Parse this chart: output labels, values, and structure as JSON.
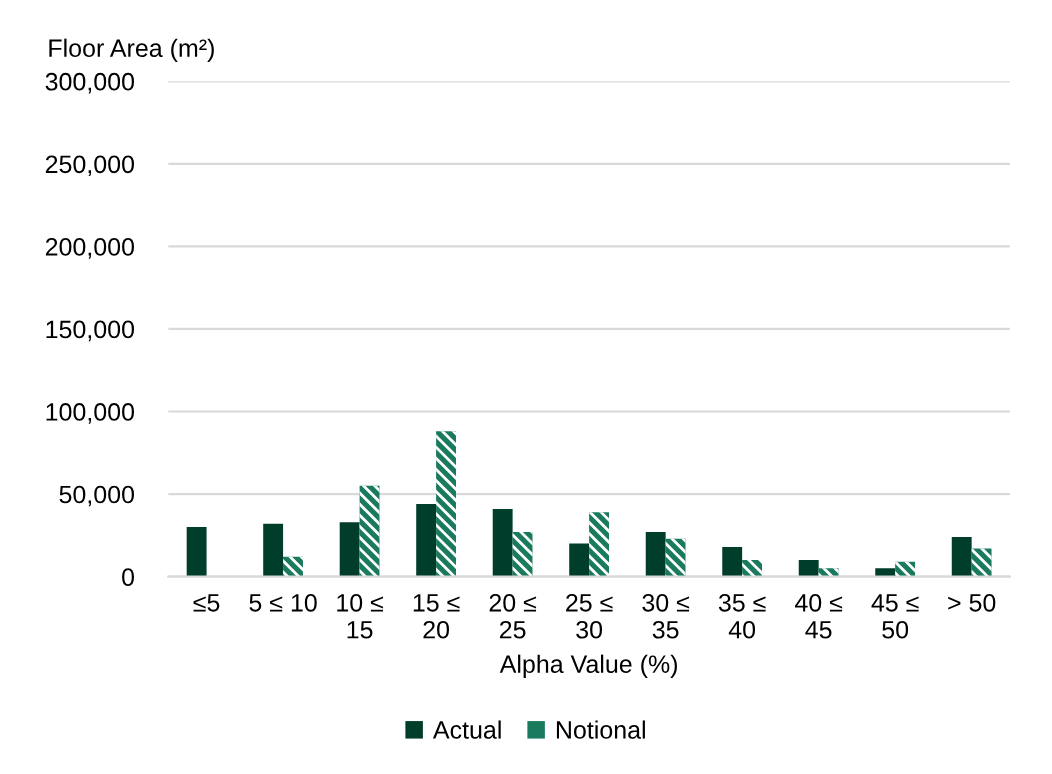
{
  "chart_data": {
    "type": "bar",
    "ylabel": "Floor Area (m²)",
    "xlabel": "Alpha Value (%)",
    "categories": [
      "≤5",
      "5 ≤ 10",
      "10 ≤\n15",
      "15 ≤\n20",
      "20 ≤\n25",
      "25 ≤\n30",
      "30 ≤\n35",
      "35 ≤\n40",
      "40 ≤\n45",
      "45 ≤\n50",
      "> 50"
    ],
    "series": [
      {
        "name": "Actual",
        "color": "#003d2b",
        "values": [
          30000,
          32000,
          33000,
          44000,
          41000,
          20000,
          27000,
          18000,
          10000,
          5000,
          24000
        ]
      },
      {
        "name": "Notional",
        "color": "#1a7a5e",
        "values": [
          null,
          12000,
          55000,
          88000,
          27000,
          39000,
          23000,
          10000,
          5000,
          9000,
          17000
        ]
      }
    ],
    "ylim": [
      0,
      300000
    ],
    "yticks": [
      {
        "value": 0,
        "label": "0"
      },
      {
        "value": 50000,
        "label": "50,000"
      },
      {
        "value": 100000,
        "label": "100,000"
      },
      {
        "value": 150000,
        "label": "150,000"
      },
      {
        "value": 200000,
        "label": "200,000"
      },
      {
        "value": 250000,
        "label": "250,000"
      },
      {
        "value": 300000,
        "label": "300,000"
      }
    ],
    "grid": "y",
    "legend": "bottom"
  }
}
